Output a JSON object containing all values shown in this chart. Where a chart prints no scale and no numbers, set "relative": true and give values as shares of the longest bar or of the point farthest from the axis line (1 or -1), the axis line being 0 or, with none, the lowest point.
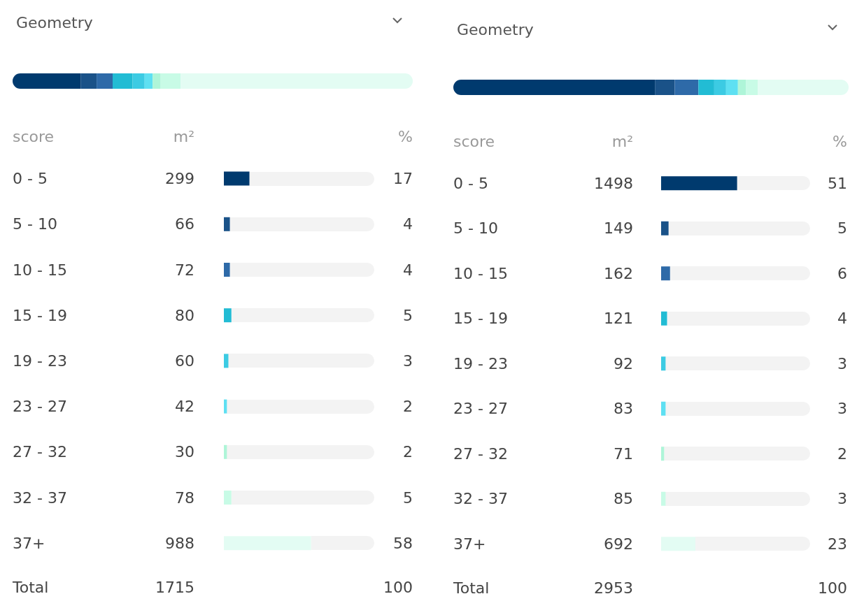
{
  "chart_data": [
    {
      "type": "bar",
      "title": "Geometry",
      "stacked": true,
      "relative": true,
      "orientation": "horizontal",
      "categories": [
        null
      ],
      "tick_labels": false,
      "series": [
        {
          "color": "#003a6e",
          "values": [
            0.17
          ]
        },
        {
          "color": "#1a5288",
          "values": [
            0.04
          ]
        },
        {
          "color": "#2e6aa8",
          "values": [
            0.04
          ]
        },
        {
          "color": "#22bcd4",
          "values": [
            0.05
          ]
        },
        {
          "color": "#3ccbe3",
          "values": [
            0.03
          ]
        },
        {
          "color": "#5ee0f2",
          "values": [
            0.02
          ]
        },
        {
          "color": "#aef5d8",
          "values": [
            0.02
          ]
        },
        {
          "color": "#c8fbe6",
          "values": [
            0.05
          ]
        },
        {
          "color": "#e3fcf3",
          "values": [
            0.58
          ]
        }
      ]
    },
    {
      "type": "bar",
      "orientation": "horizontal",
      "ylabel": "score",
      "xlabel": "%",
      "categories": [
        "0 - 5",
        "5 - 10",
        "10 - 15",
        "15 - 19",
        "19 - 23",
        "23 - 27",
        "27 - 32",
        "32 - 37",
        "37+"
      ],
      "values": [
        17,
        4,
        4,
        5,
        3,
        2,
        2,
        5,
        58
      ],
      "colors": [
        "#003a6e",
        "#1a5288",
        "#2e6aa8",
        "#22bcd4",
        "#3ccbe3",
        "#5ee0f2",
        "#aef5d8",
        "#c8fbe6",
        "#e3fcf3"
      ],
      "xlim": [
        0,
        100
      ],
      "tick_labels": "y",
      "data_labels": true,
      "annotations": [
        "m²",
        "299",
        "66",
        "72",
        "80",
        "60",
        "42",
        "30",
        "78",
        "988",
        "Total",
        "1715",
        "100"
      ]
    },
    {
      "type": "bar",
      "title": "Geometry",
      "stacked": true,
      "relative": true,
      "orientation": "horizontal",
      "categories": [
        null
      ],
      "tick_labels": false,
      "series": [
        {
          "color": "#003a6e",
          "values": [
            0.51
          ]
        },
        {
          "color": "#1a5288",
          "values": [
            0.05
          ]
        },
        {
          "color": "#2e6aa8",
          "values": [
            0.06
          ]
        },
        {
          "color": "#22bcd4",
          "values": [
            0.04
          ]
        },
        {
          "color": "#3ccbe3",
          "values": [
            0.03
          ]
        },
        {
          "color": "#5ee0f2",
          "values": [
            0.03
          ]
        },
        {
          "color": "#aef5d8",
          "values": [
            0.02
          ]
        },
        {
          "color": "#c8fbe6",
          "values": [
            0.03
          ]
        },
        {
          "color": "#e3fcf3",
          "values": [
            0.23
          ]
        }
      ]
    },
    {
      "type": "bar",
      "orientation": "horizontal",
      "ylabel": "score",
      "xlabel": "%",
      "categories": [
        "0 - 5",
        "5 - 10",
        "10 - 15",
        "15 - 19",
        "19 - 23",
        "23 - 27",
        "27 - 32",
        "32 - 37",
        "37+"
      ],
      "values": [
        51,
        5,
        6,
        4,
        3,
        3,
        2,
        3,
        23
      ],
      "colors": [
        "#003a6e",
        "#1a5288",
        "#2e6aa8",
        "#22bcd4",
        "#3ccbe3",
        "#5ee0f2",
        "#aef5d8",
        "#c8fbe6",
        "#e3fcf3"
      ],
      "xlim": [
        0,
        100
      ],
      "tick_labels": "y",
      "data_labels": true,
      "annotations": [
        "m²",
        "1498",
        "149",
        "162",
        "121",
        "92",
        "83",
        "71",
        "85",
        "692",
        "Total",
        "2953",
        "100"
      ]
    }
  ]
}
